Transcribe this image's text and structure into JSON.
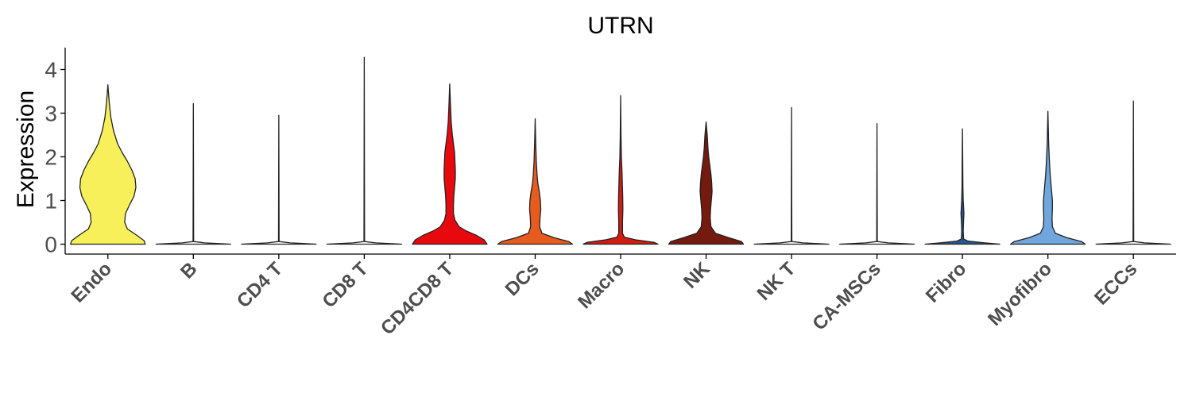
{
  "chart_data": {
    "type": "violin",
    "title": "UTRN",
    "ylabel": "Expression",
    "ylim": [
      -0.2,
      4.5
    ],
    "yticks": [
      0,
      1,
      2,
      3,
      4
    ],
    "grid": false,
    "legend": "none",
    "categories": [
      "Endo",
      "B",
      "CD4 T",
      "CD8 T",
      "CD4CD8 T",
      "DCs",
      "Macro",
      "NK",
      "NK T",
      "CA-MSCs",
      "Fibro",
      "Myofibro",
      "ECCs"
    ],
    "series": [
      {
        "category": "Endo",
        "color": "#F7F05A",
        "max": 3.65,
        "profile": [
          [
            0,
            1.0
          ],
          [
            0.08,
            0.97
          ],
          [
            0.2,
            0.78
          ],
          [
            0.35,
            0.52
          ],
          [
            0.5,
            0.45
          ],
          [
            0.7,
            0.47
          ],
          [
            0.9,
            0.58
          ],
          [
            1.1,
            0.7
          ],
          [
            1.3,
            0.75
          ],
          [
            1.5,
            0.73
          ],
          [
            1.7,
            0.64
          ],
          [
            1.9,
            0.52
          ],
          [
            2.1,
            0.38
          ],
          [
            2.3,
            0.26
          ],
          [
            2.6,
            0.15
          ],
          [
            2.9,
            0.08
          ],
          [
            3.2,
            0.04
          ],
          [
            3.65,
            0
          ]
        ]
      },
      {
        "category": "B",
        "color": "#FFFFFF",
        "max": 3.22,
        "profile": [
          [
            0,
            1.0
          ],
          [
            0.03,
            0.3
          ],
          [
            0.06,
            0.008
          ],
          [
            3.22,
            0
          ]
        ]
      },
      {
        "category": "CD4 T",
        "color": "#FFFFFF",
        "max": 2.95,
        "profile": [
          [
            0,
            1.0
          ],
          [
            0.03,
            0.3
          ],
          [
            0.06,
            0.008
          ],
          [
            2.95,
            0
          ]
        ]
      },
      {
        "category": "CD8 T",
        "color": "#FFFFFF",
        "max": 4.28,
        "profile": [
          [
            0,
            1.0
          ],
          [
            0.03,
            0.3
          ],
          [
            0.06,
            0.008
          ],
          [
            4.28,
            0
          ]
        ]
      },
      {
        "category": "CD4CD8 T",
        "color": "#E8090F",
        "max": 3.67,
        "profile": [
          [
            0,
            1.0
          ],
          [
            0.1,
            0.92
          ],
          [
            0.2,
            0.72
          ],
          [
            0.3,
            0.45
          ],
          [
            0.4,
            0.25
          ],
          [
            0.55,
            0.14
          ],
          [
            0.7,
            0.1
          ],
          [
            0.9,
            0.1
          ],
          [
            1.1,
            0.11
          ],
          [
            1.3,
            0.13
          ],
          [
            1.5,
            0.15
          ],
          [
            1.7,
            0.15
          ],
          [
            1.9,
            0.14
          ],
          [
            2.1,
            0.13
          ],
          [
            2.3,
            0.1
          ],
          [
            2.5,
            0.07
          ],
          [
            2.8,
            0.04
          ],
          [
            3.2,
            0.02
          ],
          [
            3.67,
            0
          ]
        ]
      },
      {
        "category": "DCs",
        "color": "#E85B1F",
        "max": 2.87,
        "profile": [
          [
            0,
            1.0
          ],
          [
            0.06,
            0.9
          ],
          [
            0.15,
            0.5
          ],
          [
            0.25,
            0.18
          ],
          [
            0.4,
            0.12
          ],
          [
            0.6,
            0.13
          ],
          [
            0.8,
            0.15
          ],
          [
            1.0,
            0.14
          ],
          [
            1.2,
            0.11
          ],
          [
            1.4,
            0.07
          ],
          [
            1.6,
            0.05
          ],
          [
            1.9,
            0.03
          ],
          [
            2.3,
            0.015
          ],
          [
            2.87,
            0
          ]
        ]
      },
      {
        "category": "Macro",
        "color": "#D41B10",
        "max": 3.4,
        "profile": [
          [
            0,
            1.0
          ],
          [
            0.04,
            0.9
          ],
          [
            0.1,
            0.4
          ],
          [
            0.16,
            0.1
          ],
          [
            0.25,
            0.05
          ],
          [
            0.5,
            0.05
          ],
          [
            0.8,
            0.06
          ],
          [
            1.1,
            0.055
          ],
          [
            1.4,
            0.045
          ],
          [
            1.7,
            0.035
          ],
          [
            2.0,
            0.02
          ],
          [
            2.5,
            0.01
          ],
          [
            3.4,
            0
          ]
        ]
      },
      {
        "category": "NK",
        "color": "#741A0F",
        "max": 2.8,
        "profile": [
          [
            0,
            1.0
          ],
          [
            0.06,
            0.95
          ],
          [
            0.15,
            0.6
          ],
          [
            0.25,
            0.25
          ],
          [
            0.4,
            0.13
          ],
          [
            0.6,
            0.11
          ],
          [
            0.8,
            0.12
          ],
          [
            1.0,
            0.14
          ],
          [
            1.2,
            0.16
          ],
          [
            1.4,
            0.15
          ],
          [
            1.6,
            0.13
          ],
          [
            1.8,
            0.1
          ],
          [
            2.0,
            0.07
          ],
          [
            2.2,
            0.05
          ],
          [
            2.5,
            0.03
          ],
          [
            2.8,
            0
          ]
        ]
      },
      {
        "category": "NK T",
        "color": "#FFFFFF",
        "max": 3.13,
        "profile": [
          [
            0,
            1.0
          ],
          [
            0.03,
            0.3
          ],
          [
            0.06,
            0.008
          ],
          [
            3.13,
            0
          ]
        ]
      },
      {
        "category": "CA-MSCs",
        "color": "#FFFFFF",
        "max": 2.76,
        "profile": [
          [
            0,
            1.0
          ],
          [
            0.03,
            0.3
          ],
          [
            0.06,
            0.008
          ],
          [
            2.76,
            0
          ]
        ]
      },
      {
        "category": "Fibro",
        "color": "#24568F",
        "max": 2.64,
        "profile": [
          [
            0,
            1.0
          ],
          [
            0.03,
            0.6
          ],
          [
            0.07,
            0.15
          ],
          [
            0.12,
            0.03
          ],
          [
            0.3,
            0.02
          ],
          [
            0.55,
            0.03
          ],
          [
            0.7,
            0.04
          ],
          [
            0.85,
            0.03
          ],
          [
            1.0,
            0.02
          ],
          [
            1.3,
            0.012
          ],
          [
            2.0,
            0.006
          ],
          [
            2.64,
            0
          ]
        ]
      },
      {
        "category": "Myofibro",
        "color": "#6FA6DD",
        "max": 3.04,
        "profile": [
          [
            0,
            1.0
          ],
          [
            0.06,
            0.9
          ],
          [
            0.15,
            0.5
          ],
          [
            0.25,
            0.2
          ],
          [
            0.4,
            0.12
          ],
          [
            0.6,
            0.11
          ],
          [
            0.8,
            0.12
          ],
          [
            1.0,
            0.12
          ],
          [
            1.2,
            0.1
          ],
          [
            1.4,
            0.08
          ],
          [
            1.6,
            0.06
          ],
          [
            1.9,
            0.04
          ],
          [
            2.3,
            0.02
          ],
          [
            3.04,
            0
          ]
        ]
      },
      {
        "category": "ECCs",
        "color": "#FFFFFF",
        "max": 3.28,
        "profile": [
          [
            0,
            1.0
          ],
          [
            0.03,
            0.3
          ],
          [
            0.06,
            0.008
          ],
          [
            3.28,
            0
          ]
        ]
      }
    ]
  }
}
